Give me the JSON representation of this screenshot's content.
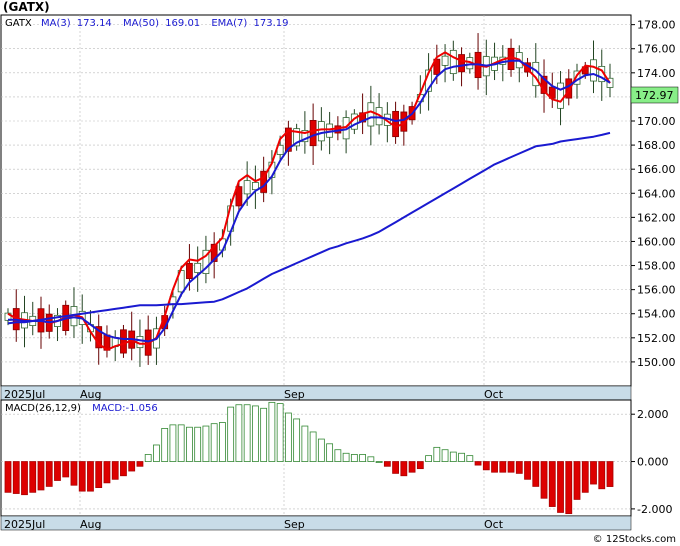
{
  "title": "(GATX)",
  "legend": {
    "symbol": "GATX",
    "ma3_label": "MA(3)",
    "ma3_value": "173.14",
    "ma50_label": "MA(50)",
    "ma50_value": "169.01",
    "ema7_label": "EMA(7)",
    "ema7_value": "173.19"
  },
  "last_price": "172.97",
  "macd_legend": {
    "label": "MACD(26,12,9)",
    "value_label": "MACD:-1.056"
  },
  "copyright": "© 12Stocks.com",
  "colors": {
    "up_candle": "#66aa33",
    "down_candle": "#dd0000",
    "ma3": "#ee0000",
    "ma50": "#1a1ad0",
    "ema7": "#1a1ad0",
    "macd_pos": "#338833",
    "macd_neg": "#dd0000",
    "axis_band": "#c8dce8",
    "last_price_badge": "#88ee88"
  },
  "chart_data": [
    {
      "type": "candlestick",
      "title": "(GATX)",
      "x_labels": [
        "2025Jul",
        "Aug",
        "Sep",
        "Oct"
      ],
      "ylim": [
        148,
        178.8
      ],
      "yticks": [
        "178.00",
        "176.00",
        "174.00",
        "172.00",
        "170.00",
        "168.00",
        "166.00",
        "164.00",
        "162.00",
        "160.00",
        "158.00",
        "156.00",
        "154.00",
        "152.00",
        "150.00"
      ],
      "grid": true,
      "series": [
        {
          "name": "MA(3)",
          "kind": "line",
          "color": "#ee0000",
          "values": [
            154.0,
            153.6,
            153.5,
            153.4,
            153.5,
            153.2,
            153.4,
            153.7,
            153.9,
            153.7,
            152.5,
            151.5,
            151.0,
            151.3,
            151.5,
            151.8,
            151.5,
            151.5,
            152.0,
            153.8,
            156.0,
            157.8,
            158.5,
            158.4,
            158.8,
            159.6,
            160.3,
            163.0,
            165.0,
            165.5,
            165.0,
            165.3,
            166.5,
            168.5,
            169.2,
            169.1,
            169.0,
            169.2,
            169.3,
            169.3,
            169.4,
            169.5,
            170.2,
            170.6,
            170.8,
            170.5,
            170.0,
            169.5,
            169.8,
            170.7,
            172.3,
            174.0,
            175.3,
            175.7,
            175.3,
            175.0,
            174.9,
            174.6,
            174.5,
            174.8,
            175.1,
            175.3,
            175.1,
            174.3,
            173.6,
            172.5,
            171.8,
            171.6,
            172.5,
            173.8,
            174.6,
            174.5,
            174.2,
            173.14
          ]
        },
        {
          "name": "MA(50)",
          "kind": "line",
          "color": "#1a1ad0",
          "values": [
            153.2,
            153.3,
            153.3,
            153.4,
            153.5,
            153.6,
            153.7,
            153.8,
            153.9,
            154.0,
            154.1,
            154.2,
            154.3,
            154.4,
            154.5,
            154.6,
            154.7,
            154.7,
            154.7,
            154.75,
            154.8,
            154.8,
            154.85,
            154.9,
            154.95,
            155.0,
            155.2,
            155.5,
            155.8,
            156.1,
            156.5,
            156.9,
            157.3,
            157.6,
            157.9,
            158.2,
            158.5,
            158.8,
            159.1,
            159.4,
            159.6,
            159.85,
            160.05,
            160.25,
            160.5,
            160.8,
            161.2,
            161.6,
            162.0,
            162.4,
            162.8,
            163.2,
            163.6,
            164.0,
            164.4,
            164.8,
            165.2,
            165.6,
            166.0,
            166.4,
            166.7,
            167.0,
            167.3,
            167.6,
            167.9,
            168.0,
            168.1,
            168.3,
            168.4,
            168.5,
            168.6,
            168.7,
            168.85,
            169.01
          ]
        },
        {
          "name": "EMA(7)",
          "kind": "line",
          "color": "#1a1ad0",
          "values": [
            153.5,
            153.5,
            153.4,
            153.4,
            153.4,
            153.3,
            153.4,
            153.6,
            153.7,
            153.6,
            153.1,
            152.6,
            152.2,
            152.0,
            151.9,
            151.9,
            151.8,
            151.7,
            151.9,
            152.8,
            154.2,
            155.6,
            156.6,
            157.2,
            157.8,
            158.5,
            159.2,
            160.8,
            162.5,
            163.5,
            164.2,
            164.6,
            165.4,
            166.7,
            167.7,
            168.2,
            168.5,
            168.8,
            169.0,
            169.1,
            169.2,
            169.3,
            169.7,
            170.0,
            170.3,
            170.3,
            170.2,
            170.0,
            170.1,
            170.6,
            171.5,
            172.7,
            173.7,
            174.3,
            174.5,
            174.6,
            174.7,
            174.7,
            174.6,
            174.7,
            174.9,
            175.0,
            175.0,
            174.6,
            174.2,
            173.5,
            172.9,
            172.6,
            172.9,
            173.4,
            173.8,
            173.9,
            173.6,
            173.19
          ]
        }
      ]
    },
    {
      "type": "bar",
      "title": "MACD(26,12,9)",
      "ylim": [
        -2.3,
        2.6
      ],
      "yticks": [
        "2.000",
        "0.000",
        "-2.000"
      ],
      "values": [
        -1.3,
        -1.35,
        -1.4,
        -1.3,
        -1.2,
        -1.05,
        -0.8,
        -0.65,
        -1.0,
        -1.25,
        -1.25,
        -1.1,
        -0.9,
        -0.75,
        -0.6,
        -0.4,
        -0.2,
        0.3,
        0.7,
        1.4,
        1.55,
        1.55,
        1.45,
        1.45,
        1.5,
        1.6,
        1.65,
        2.3,
        2.4,
        2.4,
        2.35,
        2.25,
        2.5,
        2.45,
        2.05,
        1.8,
        1.5,
        1.25,
        0.95,
        0.75,
        0.5,
        0.35,
        0.3,
        0.3,
        0.2,
        0.0,
        -0.2,
        -0.5,
        -0.6,
        -0.45,
        -0.3,
        0.25,
        0.6,
        0.5,
        0.4,
        0.35,
        0.25,
        -0.15,
        -0.35,
        -0.45,
        -0.45,
        -0.45,
        -0.5,
        -0.75,
        -1.05,
        -1.55,
        -1.9,
        -2.15,
        -2.2,
        -1.6,
        -1.3,
        -0.95,
        -1.15,
        -1.056
      ]
    }
  ]
}
